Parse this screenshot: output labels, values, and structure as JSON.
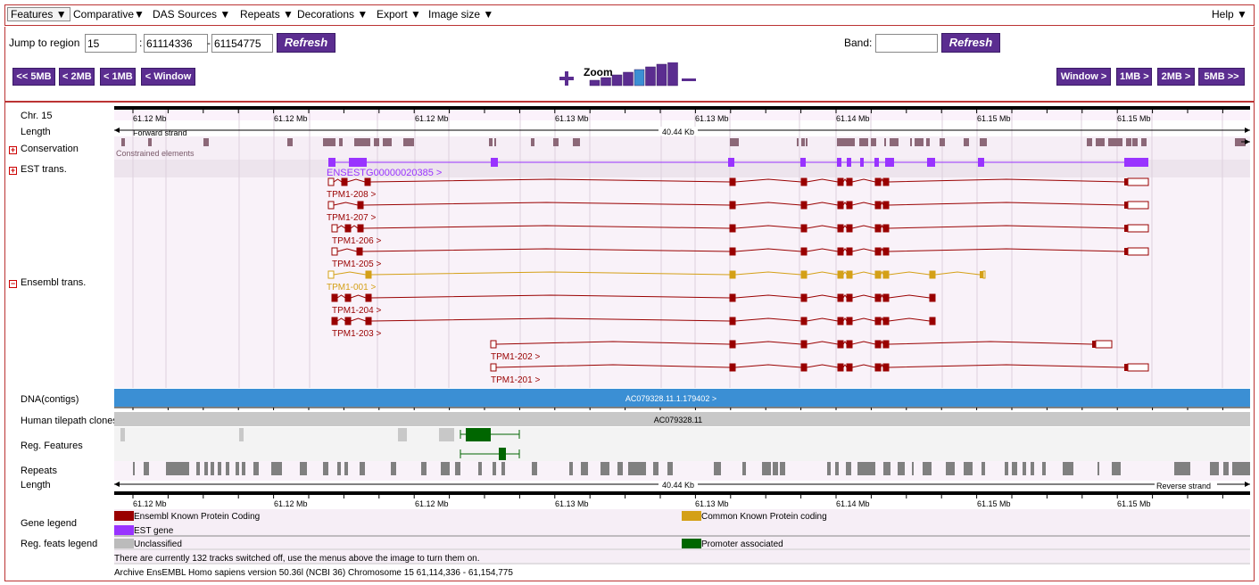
{
  "menu": [
    {
      "label": "Features ▼"
    },
    {
      "label": "Comparative▼"
    },
    {
      "label": "DAS Sources ▼"
    },
    {
      "label": "Repeats ▼"
    },
    {
      "label": "Decorations ▼"
    },
    {
      "label": "Export ▼"
    },
    {
      "label": "Image size ▼"
    },
    {
      "label": "Help ▼"
    }
  ],
  "region": {
    "jump_label": "Jump to region",
    "chr": "15",
    "sep": ":",
    "start": "61114336",
    "dash": "-",
    "end": "61154775",
    "refresh_label": "Refresh",
    "band_label": "Band:",
    "band_value": "",
    "band_refresh_label": "Refresh"
  },
  "nav": {
    "left": [
      "<< 5MB",
      "< 2MB",
      "< 1MB",
      "< Window"
    ],
    "right": [
      "Window >",
      "1MB >",
      "2MB >",
      "5MB >>"
    ],
    "zoom_label": "Zoom",
    "zoom_plus": "+",
    "zoom_minus": "–",
    "zoom_selected_level": 5,
    "zoom_levels": 8
  },
  "tracks": {
    "chr": "Chr. 15",
    "length": "Length",
    "conservation": "Conservation",
    "est": "EST trans.",
    "ensembl": "Ensembl trans.",
    "dna": "DNA(contigs)",
    "tilepath": "Human tilepath clones",
    "regfeat": "Reg. Features",
    "repeats": "Repeats",
    "length2": "Length",
    "gene_legend": "Gene legend",
    "reg_legend": "Reg. feats legend"
  },
  "scale": {
    "ticks": [
      "61.12 Mb",
      "61.12 Mb",
      "61.12 Mb",
      "61.13 Mb",
      "61.13 Mb",
      "61.14 Mb",
      "61.15 Mb",
      "61.15 Mb"
    ],
    "forward_strand": "Forward strand",
    "reverse_strand": "Reverse strand",
    "length": "40.44 Kb",
    "constrained": "Constrained elements"
  },
  "genes": {
    "est_name": "ENSESTG00000020385 >",
    "transcripts": [
      "TPM1-208 >",
      "TPM1-207 >",
      "TPM1-206 >",
      "TPM1-205 >",
      "TPM1-001 >",
      "TPM1-204 >",
      "TPM1-203 >",
      "TPM1-202 >",
      "TPM1-201 >"
    ],
    "contig": "AC079328.11.1.179402 >",
    "clone": "AC079328.11"
  },
  "legend": {
    "ensembl_known": "Ensembl Known Protein Coding",
    "common_known": "Common Known Protein coding",
    "est_gene": "EST gene",
    "unclassified": "Unclassified",
    "promoter": "Promoter associated",
    "colors": {
      "ensembl": "#990000",
      "common": "#d4a017",
      "est": "#9933ff",
      "unclassified": "#bbbbbb",
      "promoter": "#006600"
    }
  },
  "footer": {
    "tracks_off": "There are currently 132 tracks switched off, use the menus above the image to turn them on.",
    "archive": "Archive EnsEMBL Homo sapiens version 50.36l (NCBI 36) Chromosome 15 61,114,336 - 61,154,775"
  }
}
